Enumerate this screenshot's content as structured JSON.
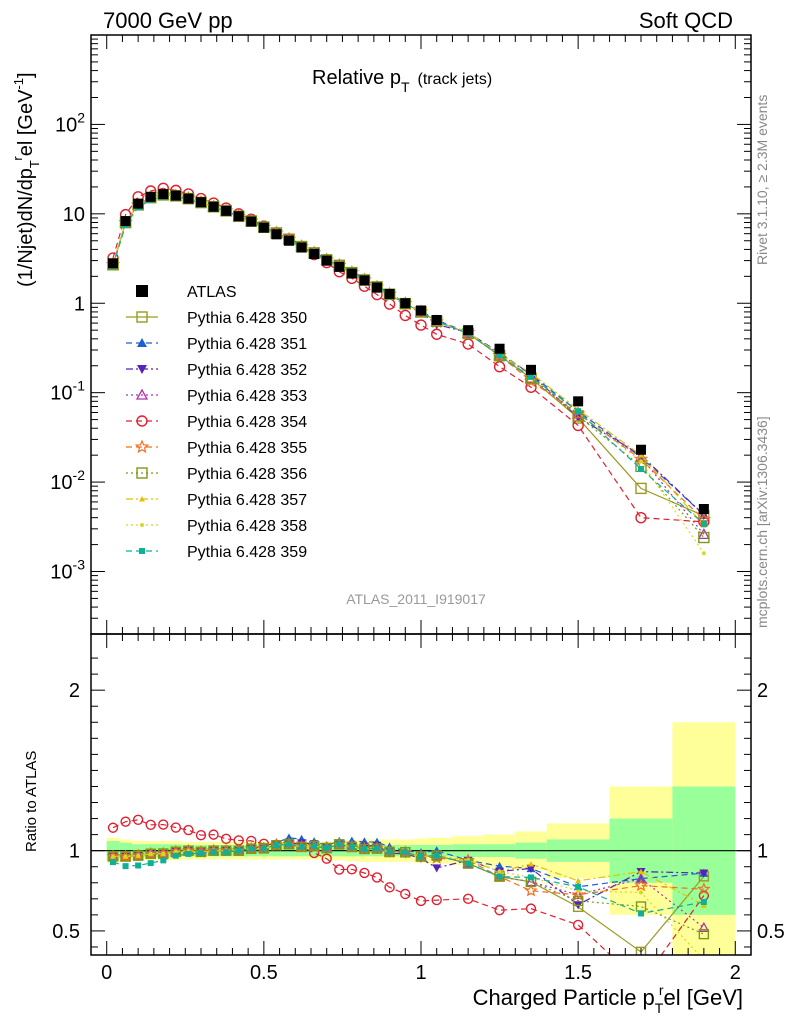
{
  "header": {
    "left": "7000 GeV pp",
    "right": "Soft QCD"
  },
  "side_labels": {
    "rivet": "Rivet 3.1.10, ≥ 2.3M events",
    "mcplots": "mcplots.cern.ch [arXiv:1306.3436]"
  },
  "colors": {
    "ratio_band_inner": "#99ff99",
    "ratio_band_outer": "#ffff99"
  },
  "chart_data": [
    {
      "type": "scatter",
      "title": "Relative p",
      "title_sub": "T",
      "title_suffix": "(track jets)",
      "ylabel": "(1/Njet)dN/dp",
      "ylabel_parts": [
        "(1/Njet)dN/dp",
        "T",
        "r",
        "el [GeV",
        "-1",
        "]"
      ],
      "analysis_label": "ATLAS_2011_I919017",
      "yscale": "log",
      "ylim": [
        0.0002,
        1000
      ],
      "xlim": [
        -0.05,
        2.05
      ],
      "ytick_labels": [
        "10^-3",
        "10^-2",
        "10^-1",
        "1",
        "10",
        "10^2"
      ],
      "legend_position": "left-middle",
      "x": [
        0.02,
        0.06,
        0.1,
        0.14,
        0.18,
        0.22,
        0.26,
        0.3,
        0.34,
        0.38,
        0.42,
        0.46,
        0.5,
        0.54,
        0.58,
        0.62,
        0.66,
        0.7,
        0.74,
        0.78,
        0.82,
        0.86,
        0.9,
        0.95,
        1.0,
        1.05,
        1.15,
        1.25,
        1.35,
        1.5,
        1.7,
        1.9
      ],
      "series": [
        {
          "name": "ATLAS",
          "color": "#000000",
          "marker": "square-filled",
          "dash": "none",
          "values": [
            2.8,
            8.3,
            13.0,
            15.5,
            16.6,
            16.0,
            14.8,
            13.5,
            12.0,
            10.8,
            9.4,
            8.2,
            7.0,
            5.9,
            5.0,
            4.2,
            3.55,
            3.0,
            2.55,
            2.15,
            1.8,
            1.5,
            1.27,
            1.0,
            0.83,
            0.65,
            0.5,
            0.31,
            0.18,
            0.08,
            0.023,
            0.005
          ]
        },
        {
          "name": "Pythia 6.428 350",
          "color": "#9a9a22",
          "marker": "square-open",
          "dash": "solid",
          "values": [
            2.7,
            8.0,
            12.6,
            15.2,
            16.3,
            15.9,
            14.8,
            13.4,
            12.0,
            10.8,
            9.4,
            8.3,
            7.1,
            6.1,
            5.2,
            4.3,
            3.65,
            3.05,
            2.65,
            2.2,
            1.82,
            1.52,
            1.26,
            0.99,
            0.8,
            0.63,
            0.46,
            0.26,
            0.145,
            0.052,
            0.0085,
            0.0042
          ]
        },
        {
          "name": "Pythia 6.428 351",
          "color": "#1f5fd1",
          "marker": "triangle-up-filled",
          "dash": "dashed",
          "values": [
            2.7,
            8.0,
            12.6,
            15.2,
            16.3,
            15.9,
            14.8,
            13.4,
            12.0,
            10.8,
            9.4,
            8.3,
            7.2,
            6.2,
            5.4,
            4.5,
            3.75,
            3.1,
            2.7,
            2.28,
            1.9,
            1.58,
            1.3,
            1.0,
            0.82,
            0.65,
            0.47,
            0.28,
            0.16,
            0.062,
            0.019,
            0.0043
          ]
        },
        {
          "name": "Pythia 6.428 352",
          "color": "#5522bb",
          "marker": "triangle-down-filled",
          "dash": "dashdot",
          "values": [
            2.7,
            8.0,
            12.6,
            15.2,
            16.3,
            15.9,
            14.8,
            13.4,
            12.0,
            10.8,
            9.4,
            8.3,
            7.1,
            6.1,
            5.2,
            4.4,
            3.7,
            3.05,
            2.65,
            2.2,
            1.85,
            1.55,
            1.25,
            0.98,
            0.79,
            0.58,
            0.47,
            0.27,
            0.16,
            0.053,
            0.02,
            0.0043
          ]
        },
        {
          "name": "Pythia 6.428 353",
          "color": "#b030b0",
          "marker": "triangle-up-open",
          "dash": "dotted",
          "values": [
            2.7,
            8.0,
            12.6,
            15.2,
            16.3,
            15.9,
            14.8,
            13.4,
            12.0,
            10.8,
            9.4,
            8.3,
            7.1,
            6.1,
            5.2,
            4.3,
            3.65,
            3.05,
            2.65,
            2.2,
            1.82,
            1.52,
            1.26,
            0.99,
            0.8,
            0.63,
            0.46,
            0.26,
            0.145,
            0.058,
            0.019,
            0.0026
          ]
        },
        {
          "name": "Pythia 6.428 354",
          "color": "#e02030",
          "marker": "circle-open",
          "dash": "dashed",
          "values": [
            3.2,
            9.8,
            15.5,
            18.0,
            19.3,
            18.3,
            16.7,
            14.8,
            13.2,
            11.6,
            10.0,
            8.7,
            7.3,
            6.1,
            5.2,
            4.3,
            3.5,
            2.85,
            2.25,
            1.9,
            1.55,
            1.25,
            0.98,
            0.73,
            0.57,
            0.45,
            0.35,
            0.195,
            0.115,
            0.043,
            0.004,
            0.0036
          ]
        },
        {
          "name": "Pythia 6.428 355",
          "color": "#f07020",
          "marker": "star-open",
          "dash": "dashed",
          "values": [
            2.7,
            8.0,
            12.6,
            15.2,
            16.3,
            15.9,
            14.8,
            13.4,
            12.0,
            10.8,
            9.4,
            8.3,
            7.1,
            6.1,
            5.2,
            4.3,
            3.65,
            3.05,
            2.65,
            2.2,
            1.82,
            1.52,
            1.26,
            0.99,
            0.8,
            0.62,
            0.47,
            0.26,
            0.135,
            0.058,
            0.018,
            0.0038
          ]
        },
        {
          "name": "Pythia 6.428 356",
          "color": "#7a9a18",
          "marker": "square-open",
          "dash": "dotted",
          "values": [
            2.7,
            8.0,
            12.6,
            15.2,
            16.3,
            15.9,
            14.8,
            13.4,
            12.0,
            10.8,
            9.4,
            8.3,
            7.1,
            6.1,
            5.2,
            4.3,
            3.65,
            3.05,
            2.65,
            2.2,
            1.82,
            1.52,
            1.26,
            0.99,
            0.8,
            0.63,
            0.46,
            0.26,
            0.145,
            0.055,
            0.015,
            0.0024
          ]
        },
        {
          "name": "Pythia 6.428 357",
          "color": "#e8c000",
          "marker": "triangle-up-small",
          "dash": "dashdot",
          "values": [
            2.7,
            8.0,
            12.6,
            15.2,
            16.3,
            15.9,
            14.8,
            13.4,
            12.0,
            10.8,
            9.4,
            8.3,
            7.1,
            6.1,
            5.2,
            4.3,
            3.65,
            3.05,
            2.65,
            2.2,
            1.82,
            1.52,
            1.26,
            0.99,
            0.8,
            0.63,
            0.47,
            0.27,
            0.165,
            0.065,
            0.02,
            0.0033
          ]
        },
        {
          "name": "Pythia 6.428 358",
          "color": "#d8d820",
          "marker": "dot",
          "dash": "dotted",
          "values": [
            2.7,
            8.0,
            12.6,
            15.2,
            16.3,
            15.9,
            14.8,
            13.4,
            12.0,
            10.8,
            9.4,
            8.3,
            7.1,
            6.1,
            5.2,
            4.3,
            3.65,
            3.05,
            2.65,
            2.2,
            1.82,
            1.52,
            1.26,
            0.99,
            0.8,
            0.63,
            0.47,
            0.27,
            0.15,
            0.06,
            0.017,
            0.0016
          ]
        },
        {
          "name": "Pythia 6.428 359",
          "color": "#10b098",
          "marker": "square-small-filled",
          "dash": "dashed",
          "values": [
            2.6,
            7.5,
            11.8,
            14.3,
            15.6,
            15.5,
            14.5,
            13.3,
            11.9,
            10.7,
            9.4,
            8.3,
            7.1,
            6.1,
            5.2,
            4.3,
            3.65,
            3.05,
            2.65,
            2.2,
            1.82,
            1.52,
            1.26,
            0.99,
            0.8,
            0.63,
            0.46,
            0.26,
            0.15,
            0.062,
            0.014,
            0.0034
          ]
        }
      ]
    },
    {
      "type": "line",
      "ylabel": "Ratio to ATLAS",
      "xlabel": "Charged Particle p",
      "xlabel_parts": [
        "Charged Particle p",
        "T",
        "r",
        "el [GeV]"
      ],
      "xlim": [
        -0.05,
        2.05
      ],
      "ylim": [
        0.35,
        2.35
      ],
      "xtick_labels": [
        "0",
        "0.5",
        "1",
        "1.5",
        "2"
      ],
      "ytick_labels": [
        "0.5",
        "1",
        "2"
      ],
      "reference_line": 1,
      "band_x_edges": [
        0,
        0.04,
        0.08,
        0.12,
        0.16,
        0.2,
        0.24,
        0.28,
        0.32,
        0.36,
        0.4,
        0.44,
        0.48,
        0.52,
        0.56,
        0.6,
        0.64,
        0.68,
        0.72,
        0.76,
        0.8,
        0.84,
        0.88,
        0.92,
        0.98,
        1.02,
        1.1,
        1.2,
        1.3,
        1.4,
        1.6,
        1.8,
        2.0
      ],
      "band_inner": [
        0.06,
        0.05,
        0.04,
        0.04,
        0.04,
        0.04,
        0.035,
        0.035,
        0.035,
        0.035,
        0.035,
        0.035,
        0.035,
        0.035,
        0.035,
        0.035,
        0.035,
        0.035,
        0.035,
        0.035,
        0.035,
        0.035,
        0.035,
        0.035,
        0.035,
        0.035,
        0.04,
        0.04,
        0.05,
        0.07,
        0.2,
        0.4
      ],
      "band_outer": [
        0.08,
        0.07,
        0.06,
        0.06,
        0.06,
        0.06,
        0.055,
        0.055,
        0.055,
        0.055,
        0.055,
        0.055,
        0.055,
        0.055,
        0.055,
        0.055,
        0.055,
        0.055,
        0.06,
        0.065,
        0.07,
        0.07,
        0.07,
        0.07,
        0.075,
        0.08,
        0.09,
        0.1,
        0.12,
        0.17,
        0.4,
        0.8
      ]
    }
  ]
}
